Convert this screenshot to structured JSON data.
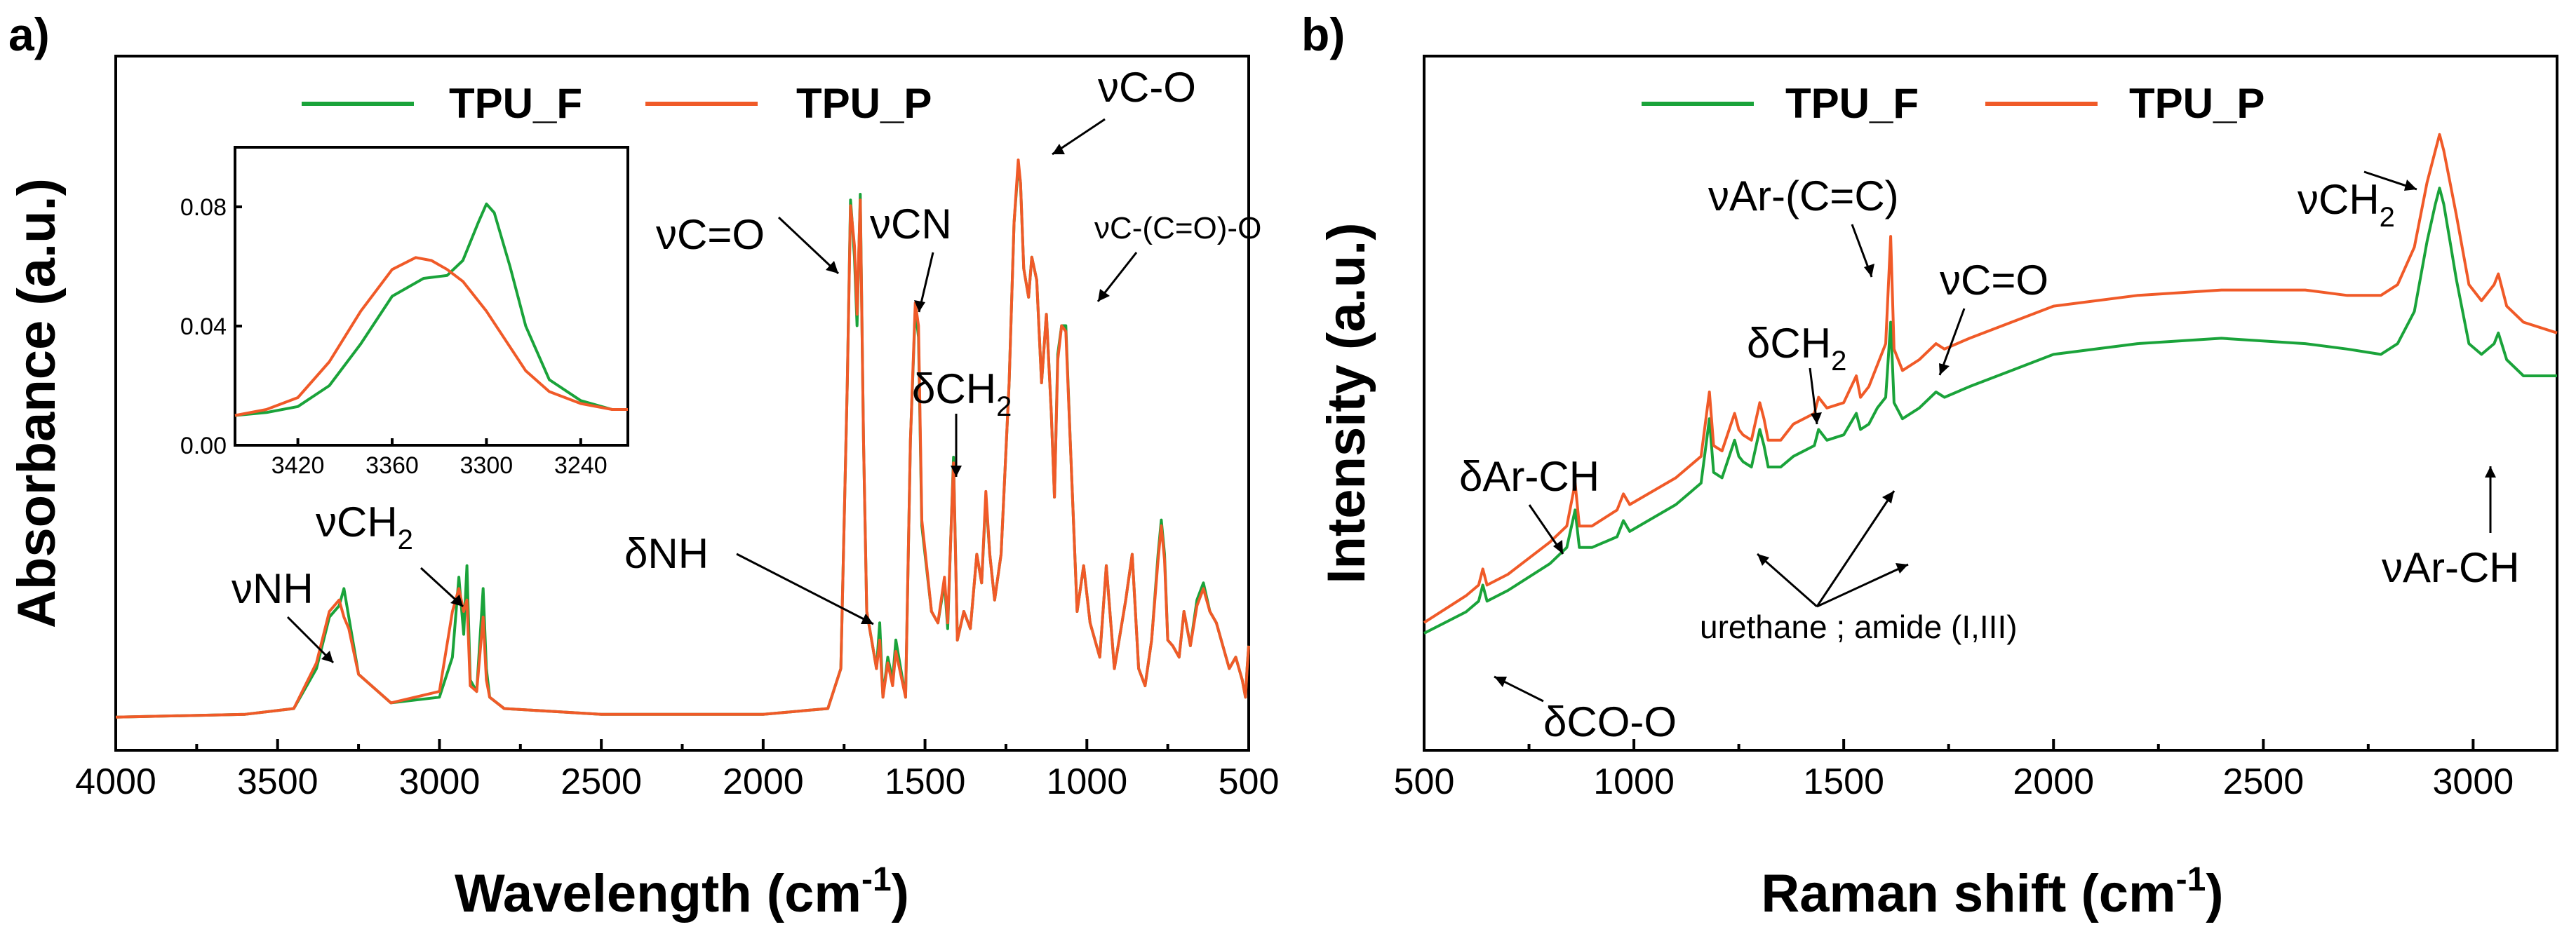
{
  "panels": {
    "a": {
      "label": "a)"
    },
    "b": {
      "label": "b)"
    }
  },
  "colors": {
    "TPU_F": "#1aa33a",
    "TPU_P": "#f05a28"
  },
  "chart_data": [
    {
      "id": "a",
      "type": "line",
      "xlabel": "Wavelength (cm",
      "xlabel_sup": "-1",
      "xlabel_close": ")",
      "ylabel": "Absorbance (a.u.)",
      "xlim": [
        4000,
        500
      ],
      "ylim": [
        0,
        1
      ],
      "x_ticks": [
        4000,
        3500,
        3000,
        2500,
        2000,
        1500,
        1000,
        500
      ],
      "x_tick_labels": [
        "4000",
        "3500",
        "3000",
        "2500",
        "2000",
        "1500",
        "1000",
        "500"
      ],
      "legend": {
        "placement": "top-center",
        "entries": [
          "TPU_F",
          "TPU_P"
        ]
      },
      "series": [
        {
          "name": "TPU_F",
          "x": [
            4000,
            3600,
            3450,
            3380,
            3340,
            3310,
            3295,
            3280,
            3250,
            3150,
            3000,
            2960,
            2940,
            2925,
            2915,
            2905,
            2885,
            2865,
            2855,
            2845,
            2800,
            2500,
            2000,
            1800,
            1760,
            1740,
            1730,
            1725,
            1718,
            1710,
            1700,
            1690,
            1680,
            1650,
            1640,
            1630,
            1615,
            1600,
            1590,
            1560,
            1545,
            1530,
            1520,
            1510,
            1480,
            1460,
            1440,
            1430,
            1412,
            1400,
            1380,
            1360,
            1340,
            1325,
            1312,
            1300,
            1285,
            1265,
            1240,
            1225,
            1212,
            1205,
            1195,
            1180,
            1170,
            1155,
            1140,
            1125,
            1110,
            1100,
            1090,
            1078,
            1065,
            1050,
            1030,
            1010,
            990,
            960,
            940,
            915,
            880,
            860,
            840,
            820,
            800,
            780,
            770,
            760,
            750,
            735,
            715,
            700,
            680,
            660,
            640,
            620,
            600,
            580,
            560,
            540,
            520,
            510,
            505,
            500
          ],
          "y": [
            0.015,
            0.02,
            0.03,
            0.1,
            0.19,
            0.21,
            0.24,
            0.19,
            0.09,
            0.04,
            0.05,
            0.12,
            0.26,
            0.16,
            0.28,
            0.08,
            0.06,
            0.24,
            0.1,
            0.05,
            0.03,
            0.02,
            0.02,
            0.03,
            0.1,
            0.6,
            0.92,
            0.88,
            0.82,
            0.7,
            0.93,
            0.5,
            0.2,
            0.1,
            0.18,
            0.05,
            0.12,
            0.08,
            0.15,
            0.05,
            0.5,
            0.73,
            0.68,
            0.35,
            0.2,
            0.18,
            0.25,
            0.17,
            0.47,
            0.15,
            0.2,
            0.17,
            0.3,
            0.25,
            0.4,
            0.3,
            0.22,
            0.3,
            0.6,
            0.88,
            0.98,
            0.95,
            0.8,
            0.75,
            0.82,
            0.78,
            0.6,
            0.72,
            0.55,
            0.4,
            0.65,
            0.7,
            0.7,
            0.48,
            0.2,
            0.28,
            0.18,
            0.12,
            0.28,
            0.1,
            0.22,
            0.3,
            0.1,
            0.07,
            0.15,
            0.3,
            0.36,
            0.3,
            0.15,
            0.14,
            0.12,
            0.2,
            0.14,
            0.22,
            0.25,
            0.2,
            0.18,
            0.14,
            0.1,
            0.12,
            0.08,
            0.05,
            0.1,
            0.14
          ]
        },
        {
          "name": "TPU_P",
          "x": [
            4000,
            3600,
            3450,
            3380,
            3340,
            3310,
            3295,
            3280,
            3250,
            3150,
            3000,
            2960,
            2940,
            2925,
            2915,
            2905,
            2885,
            2865,
            2855,
            2845,
            2800,
            2500,
            2000,
            1800,
            1760,
            1740,
            1730,
            1725,
            1718,
            1710,
            1700,
            1690,
            1680,
            1650,
            1640,
            1630,
            1615,
            1600,
            1590,
            1560,
            1545,
            1530,
            1520,
            1510,
            1480,
            1460,
            1440,
            1430,
            1412,
            1400,
            1380,
            1360,
            1340,
            1325,
            1312,
            1300,
            1285,
            1265,
            1240,
            1225,
            1212,
            1205,
            1195,
            1180,
            1170,
            1155,
            1140,
            1125,
            1110,
            1100,
            1090,
            1078,
            1065,
            1050,
            1030,
            1010,
            990,
            960,
            940,
            915,
            880,
            860,
            840,
            820,
            800,
            780,
            770,
            760,
            750,
            735,
            715,
            700,
            680,
            660,
            640,
            620,
            600,
            580,
            560,
            540,
            520,
            510,
            505,
            500
          ],
          "y": [
            0.015,
            0.02,
            0.03,
            0.11,
            0.2,
            0.22,
            0.19,
            0.17,
            0.09,
            0.04,
            0.06,
            0.2,
            0.24,
            0.2,
            0.22,
            0.07,
            0.06,
            0.19,
            0.08,
            0.05,
            0.03,
            0.02,
            0.02,
            0.03,
            0.1,
            0.6,
            0.91,
            0.88,
            0.84,
            0.72,
            0.92,
            0.5,
            0.2,
            0.1,
            0.15,
            0.05,
            0.11,
            0.07,
            0.13,
            0.05,
            0.5,
            0.74,
            0.7,
            0.36,
            0.2,
            0.18,
            0.26,
            0.18,
            0.46,
            0.15,
            0.2,
            0.17,
            0.3,
            0.25,
            0.41,
            0.3,
            0.22,
            0.3,
            0.6,
            0.88,
            0.99,
            0.95,
            0.8,
            0.75,
            0.82,
            0.78,
            0.6,
            0.72,
            0.55,
            0.4,
            0.64,
            0.7,
            0.69,
            0.48,
            0.2,
            0.28,
            0.18,
            0.12,
            0.28,
            0.1,
            0.22,
            0.3,
            0.1,
            0.07,
            0.15,
            0.29,
            0.35,
            0.29,
            0.15,
            0.14,
            0.12,
            0.2,
            0.14,
            0.21,
            0.24,
            0.2,
            0.18,
            0.14,
            0.1,
            0.12,
            0.08,
            0.05,
            0.1,
            0.14
          ]
        }
      ],
      "annotations": [
        {
          "text": "νNH"
        },
        {
          "text": "νCH",
          "sub": "2"
        },
        {
          "text": "νC=O"
        },
        {
          "text": "νCN"
        },
        {
          "text": "νC-O"
        },
        {
          "text": "νC-(C=O)-O"
        },
        {
          "text": "δCH",
          "sub": "2"
        },
        {
          "text": "δNH"
        }
      ],
      "inset": {
        "xlim": [
          3460,
          3210
        ],
        "ylim": [
          0,
          0.1
        ],
        "x_ticks": [
          3420,
          3360,
          3300,
          3240
        ],
        "x_tick_labels": [
          "3420",
          "3360",
          "3300",
          "3240"
        ],
        "y_ticks": [
          0.0,
          0.04,
          0.08
        ],
        "y_tick_labels": [
          "0.00",
          "0.04",
          "0.08"
        ],
        "series": [
          {
            "name": "TPU_F",
            "x": [
              3460,
              3440,
              3420,
              3400,
              3380,
              3360,
              3340,
              3325,
              3315,
              3305,
              3300,
              3295,
              3285,
              3275,
              3260,
              3240,
              3220,
              3210
            ],
            "y": [
              0.01,
              0.011,
              0.013,
              0.02,
              0.034,
              0.05,
              0.056,
              0.057,
              0.062,
              0.075,
              0.081,
              0.078,
              0.06,
              0.04,
              0.022,
              0.015,
              0.012,
              0.012
            ]
          },
          {
            "name": "TPU_P",
            "x": [
              3460,
              3440,
              3420,
              3400,
              3380,
              3360,
              3345,
              3335,
              3325,
              3315,
              3300,
              3285,
              3275,
              3260,
              3240,
              3220,
              3210
            ],
            "y": [
              0.01,
              0.012,
              0.016,
              0.028,
              0.045,
              0.059,
              0.063,
              0.062,
              0.059,
              0.055,
              0.045,
              0.033,
              0.025,
              0.018,
              0.014,
              0.012,
              0.012
            ]
          }
        ]
      }
    },
    {
      "id": "b",
      "type": "line",
      "xlabel": "Raman shift (cm",
      "xlabel_sup": "-1",
      "xlabel_close": ")",
      "ylabel": "Intensity (a.u.)",
      "xlim": [
        500,
        3200
      ],
      "ylim": [
        0,
        1
      ],
      "x_ticks": [
        500,
        1000,
        1500,
        2000,
        2500,
        3000
      ],
      "x_tick_labels": [
        "500",
        "1000",
        "1500",
        "2000",
        "2500",
        "3000"
      ],
      "legend": {
        "placement": "top-center",
        "entries": [
          "TPU_F",
          "TPU_P"
        ]
      },
      "series": [
        {
          "name": "TPU_F",
          "x": [
            500,
            600,
            630,
            640,
            650,
            700,
            800,
            840,
            860,
            870,
            900,
            960,
            975,
            990,
            1100,
            1160,
            1180,
            1190,
            1210,
            1240,
            1250,
            1260,
            1280,
            1300,
            1310,
            1320,
            1350,
            1380,
            1430,
            1440,
            1460,
            1500,
            1530,
            1540,
            1560,
            1580,
            1600,
            1612,
            1620,
            1640,
            1680,
            1720,
            1740,
            1800,
            1900,
            2000,
            2200,
            2400,
            2600,
            2700,
            2780,
            2820,
            2860,
            2890,
            2910,
            2920,
            2930,
            2945,
            2960,
            2990,
            3020,
            3050,
            3060,
            3080,
            3120,
            3200
          ],
          "y": [
            0.12,
            0.16,
            0.18,
            0.21,
            0.18,
            0.2,
            0.25,
            0.28,
            0.35,
            0.28,
            0.28,
            0.3,
            0.33,
            0.31,
            0.36,
            0.4,
            0.52,
            0.42,
            0.41,
            0.48,
            0.45,
            0.44,
            0.43,
            0.5,
            0.47,
            0.43,
            0.43,
            0.45,
            0.47,
            0.5,
            0.48,
            0.49,
            0.53,
            0.5,
            0.51,
            0.54,
            0.56,
            0.7,
            0.55,
            0.52,
            0.54,
            0.57,
            0.56,
            0.58,
            0.61,
            0.64,
            0.66,
            0.67,
            0.66,
            0.65,
            0.64,
            0.66,
            0.72,
            0.85,
            0.92,
            0.95,
            0.92,
            0.85,
            0.78,
            0.66,
            0.64,
            0.66,
            0.68,
            0.63,
            0.6,
            0.6
          ]
        },
        {
          "name": "TPU_P",
          "x": [
            500,
            600,
            630,
            640,
            650,
            700,
            800,
            840,
            860,
            870,
            900,
            960,
            975,
            990,
            1100,
            1160,
            1180,
            1190,
            1210,
            1240,
            1250,
            1260,
            1280,
            1300,
            1310,
            1320,
            1350,
            1380,
            1430,
            1440,
            1460,
            1500,
            1530,
            1540,
            1560,
            1580,
            1600,
            1612,
            1620,
            1640,
            1680,
            1720,
            1740,
            1800,
            1900,
            2000,
            2200,
            2400,
            2600,
            2700,
            2780,
            2820,
            2860,
            2890,
            2910,
            2920,
            2930,
            2945,
            2960,
            2990,
            3020,
            3050,
            3060,
            3080,
            3120,
            3200
          ],
          "y": [
            0.14,
            0.19,
            0.21,
            0.24,
            0.21,
            0.23,
            0.29,
            0.32,
            0.4,
            0.32,
            0.32,
            0.35,
            0.38,
            0.36,
            0.41,
            0.45,
            0.57,
            0.47,
            0.46,
            0.53,
            0.5,
            0.49,
            0.48,
            0.55,
            0.52,
            0.48,
            0.48,
            0.51,
            0.53,
            0.56,
            0.54,
            0.55,
            0.6,
            0.56,
            0.58,
            0.62,
            0.66,
            0.86,
            0.65,
            0.61,
            0.63,
            0.66,
            0.65,
            0.67,
            0.7,
            0.73,
            0.75,
            0.76,
            0.76,
            0.75,
            0.75,
            0.77,
            0.84,
            0.96,
            1.02,
            1.05,
            1.02,
            0.96,
            0.9,
            0.77,
            0.74,
            0.77,
            0.79,
            0.73,
            0.7,
            0.68
          ]
        }
      ],
      "annotations": [
        {
          "text": "νAr-(C=C)"
        },
        {
          "text": "δCH",
          "sub": "2"
        },
        {
          "text": "νC=O"
        },
        {
          "text": "νCH",
          "sub": "2"
        },
        {
          "text": "δAr-CH"
        },
        {
          "text": "urethane ; amide (I,III)"
        },
        {
          "text": "δCO-O"
        },
        {
          "text": "νAr-CH"
        }
      ]
    }
  ]
}
